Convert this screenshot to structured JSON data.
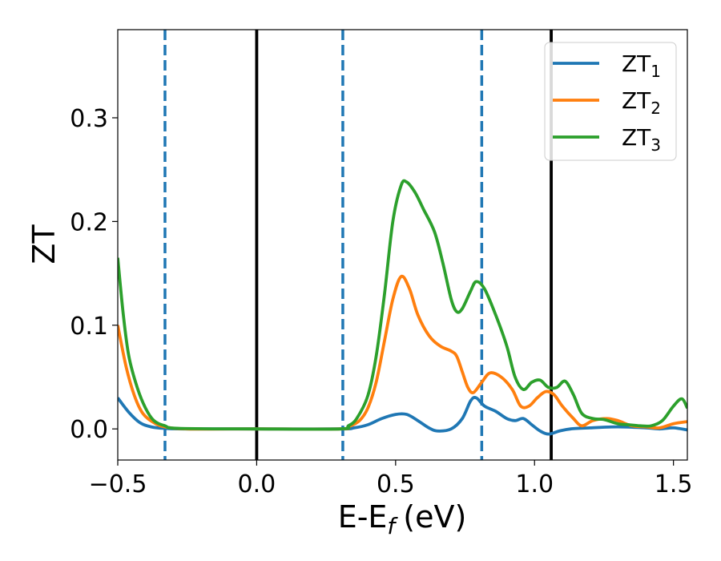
{
  "chart_data": {
    "type": "line",
    "xlabel": "E-E",
    "xlabel_sub": "f",
    "xlabel_unit": "(eV)",
    "ylabel": "ZT",
    "xlim": [
      -0.5,
      1.55
    ],
    "ylim": [
      -0.03,
      0.385
    ],
    "x_ticks": [
      {
        "value": -0.5,
        "label": "−0.5"
      },
      {
        "value": 0.0,
        "label": "0.0"
      },
      {
        "value": 0.5,
        "label": "0.5"
      },
      {
        "value": 1.0,
        "label": "1.0"
      },
      {
        "value": 1.5,
        "label": "1.5"
      }
    ],
    "y_ticks": [
      {
        "value": 0.0,
        "label": "0.0"
      },
      {
        "value": 0.1,
        "label": "0.1"
      },
      {
        "value": 0.2,
        "label": "0.2"
      },
      {
        "value": 0.3,
        "label": "0.3"
      }
    ],
    "grid": false,
    "legend_position": "top-right",
    "vertical_lines": [
      {
        "x": -0.33,
        "style": "dashed",
        "color": "#1f77b4"
      },
      {
        "x": 0.0,
        "style": "solid",
        "color": "#000000"
      },
      {
        "x": 0.31,
        "style": "dashed",
        "color": "#1f77b4"
      },
      {
        "x": 0.81,
        "style": "dashed",
        "color": "#1f77b4"
      },
      {
        "x": 1.06,
        "style": "solid",
        "color": "#000000"
      }
    ],
    "series": [
      {
        "name": "ZT",
        "subscript": "1",
        "color": "#1f77b4",
        "points": [
          [
            -0.5,
            0.03
          ],
          [
            -0.46,
            0.016
          ],
          [
            -0.42,
            0.006
          ],
          [
            -0.38,
            0.002
          ],
          [
            -0.33,
            0.0005
          ],
          [
            -0.25,
            0.0
          ],
          [
            0.0,
            0.0
          ],
          [
            0.3,
            0.0
          ],
          [
            0.35,
            0.001
          ],
          [
            0.4,
            0.004
          ],
          [
            0.45,
            0.01
          ],
          [
            0.5,
            0.014
          ],
          [
            0.54,
            0.014
          ],
          [
            0.58,
            0.008
          ],
          [
            0.62,
            0.001
          ],
          [
            0.65,
            -0.002
          ],
          [
            0.7,
            0.0
          ],
          [
            0.74,
            0.01
          ],
          [
            0.77,
            0.027
          ],
          [
            0.79,
            0.03
          ],
          [
            0.82,
            0.022
          ],
          [
            0.86,
            0.017
          ],
          [
            0.9,
            0.01
          ],
          [
            0.93,
            0.008
          ],
          [
            0.96,
            0.01
          ],
          [
            0.99,
            0.004
          ],
          [
            1.02,
            -0.002
          ],
          [
            1.05,
            -0.005
          ],
          [
            1.09,
            -0.002
          ],
          [
            1.13,
            0.0
          ],
          [
            1.2,
            0.001
          ],
          [
            1.3,
            0.002
          ],
          [
            1.4,
            0.001
          ],
          [
            1.45,
            0.0
          ],
          [
            1.5,
            0.001
          ],
          [
            1.55,
            -0.001
          ]
        ]
      },
      {
        "name": "ZT",
        "subscript": "2",
        "color": "#ff7f0e",
        "points": [
          [
            -0.5,
            0.1
          ],
          [
            -0.47,
            0.06
          ],
          [
            -0.44,
            0.032
          ],
          [
            -0.41,
            0.015
          ],
          [
            -0.37,
            0.006
          ],
          [
            -0.33,
            0.002
          ],
          [
            -0.25,
            0.0
          ],
          [
            0.0,
            0.0
          ],
          [
            0.3,
            0.0
          ],
          [
            0.33,
            0.002
          ],
          [
            0.37,
            0.008
          ],
          [
            0.4,
            0.02
          ],
          [
            0.43,
            0.045
          ],
          [
            0.46,
            0.085
          ],
          [
            0.49,
            0.125
          ],
          [
            0.52,
            0.147
          ],
          [
            0.55,
            0.135
          ],
          [
            0.58,
            0.11
          ],
          [
            0.62,
            0.09
          ],
          [
            0.66,
            0.08
          ],
          [
            0.7,
            0.075
          ],
          [
            0.72,
            0.07
          ],
          [
            0.74,
            0.055
          ],
          [
            0.76,
            0.04
          ],
          [
            0.78,
            0.035
          ],
          [
            0.81,
            0.045
          ],
          [
            0.84,
            0.054
          ],
          [
            0.88,
            0.05
          ],
          [
            0.92,
            0.038
          ],
          [
            0.95,
            0.022
          ],
          [
            0.98,
            0.022
          ],
          [
            1.01,
            0.03
          ],
          [
            1.04,
            0.036
          ],
          [
            1.07,
            0.033
          ],
          [
            1.1,
            0.022
          ],
          [
            1.14,
            0.01
          ],
          [
            1.17,
            0.003
          ],
          [
            1.21,
            0.008
          ],
          [
            1.26,
            0.01
          ],
          [
            1.3,
            0.008
          ],
          [
            1.35,
            0.003
          ],
          [
            1.4,
            0.002
          ],
          [
            1.45,
            0.001
          ],
          [
            1.5,
            0.005
          ],
          [
            1.55,
            0.007
          ]
        ]
      },
      {
        "name": "ZT",
        "subscript": "3",
        "color": "#2ca02c",
        "points": [
          [
            -0.5,
            0.165
          ],
          [
            -0.48,
            0.11
          ],
          [
            -0.46,
            0.07
          ],
          [
            -0.43,
            0.04
          ],
          [
            -0.4,
            0.02
          ],
          [
            -0.37,
            0.008
          ],
          [
            -0.33,
            0.003
          ],
          [
            -0.28,
            0.0005
          ],
          [
            0.0,
            0.0
          ],
          [
            0.3,
            0.0
          ],
          [
            0.33,
            0.003
          ],
          [
            0.36,
            0.01
          ],
          [
            0.4,
            0.032
          ],
          [
            0.43,
            0.07
          ],
          [
            0.46,
            0.13
          ],
          [
            0.49,
            0.2
          ],
          [
            0.52,
            0.235
          ],
          [
            0.54,
            0.238
          ],
          [
            0.57,
            0.228
          ],
          [
            0.6,
            0.212
          ],
          [
            0.64,
            0.19
          ],
          [
            0.67,
            0.16
          ],
          [
            0.7,
            0.125
          ],
          [
            0.72,
            0.113
          ],
          [
            0.74,
            0.116
          ],
          [
            0.77,
            0.133
          ],
          [
            0.79,
            0.142
          ],
          [
            0.82,
            0.135
          ],
          [
            0.86,
            0.11
          ],
          [
            0.9,
            0.08
          ],
          [
            0.93,
            0.05
          ],
          [
            0.96,
            0.038
          ],
          [
            0.99,
            0.045
          ],
          [
            1.02,
            0.047
          ],
          [
            1.05,
            0.04
          ],
          [
            1.08,
            0.04
          ],
          [
            1.11,
            0.046
          ],
          [
            1.14,
            0.033
          ],
          [
            1.17,
            0.015
          ],
          [
            1.21,
            0.01
          ],
          [
            1.25,
            0.009
          ],
          [
            1.3,
            0.005
          ],
          [
            1.34,
            0.004
          ],
          [
            1.38,
            0.003
          ],
          [
            1.42,
            0.003
          ],
          [
            1.46,
            0.008
          ],
          [
            1.5,
            0.022
          ],
          [
            1.53,
            0.029
          ],
          [
            1.55,
            0.02
          ]
        ]
      }
    ]
  }
}
